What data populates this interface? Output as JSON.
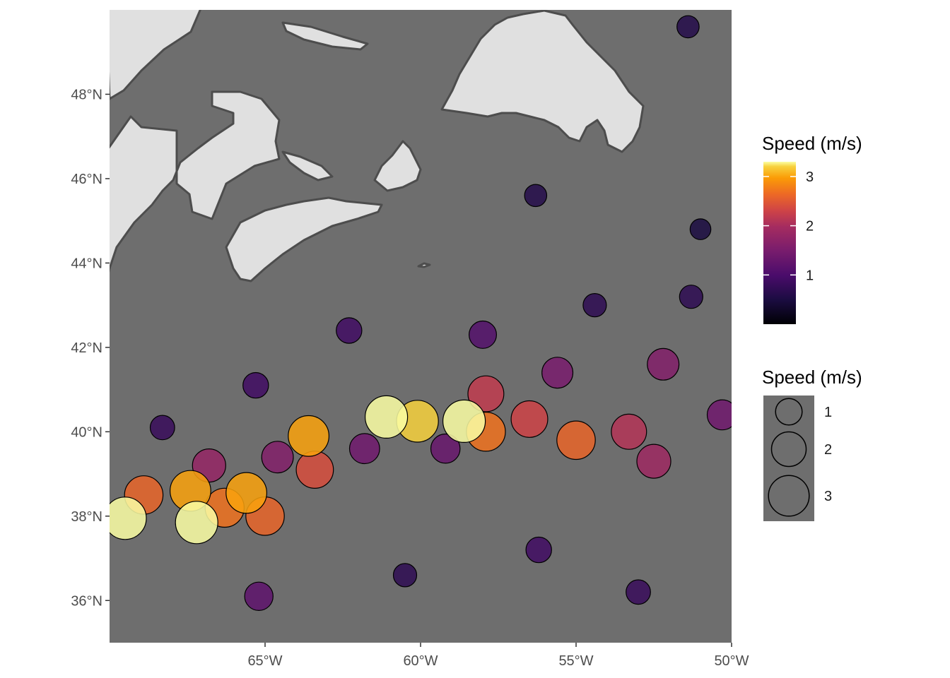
{
  "chart_data": {
    "type": "scatter",
    "title": "",
    "xlabel": "",
    "ylabel": "",
    "xlim": [
      -70,
      -50
    ],
    "ylim": [
      35,
      50
    ],
    "x_ticks": [
      {
        "value": -65,
        "label": "65°W"
      },
      {
        "value": -60,
        "label": "60°W"
      },
      {
        "value": -55,
        "label": "55°W"
      },
      {
        "value": -50,
        "label": "50°W"
      }
    ],
    "y_ticks": [
      {
        "value": 36,
        "label": "36°N"
      },
      {
        "value": 38,
        "label": "38°N"
      },
      {
        "value": 40,
        "label": "40°N"
      },
      {
        "value": 42,
        "label": "42°N"
      },
      {
        "value": 44,
        "label": "44°N"
      },
      {
        "value": 46,
        "label": "46°N"
      },
      {
        "value": 48,
        "label": "48°N"
      }
    ],
    "colors": {
      "ocean": "#6e6e6e",
      "land": "#e0e0e0",
      "coastline": "#4d4d4d",
      "palette": "inferno"
    },
    "legend": {
      "placement": "right",
      "color": {
        "title": "Speed (m/s)",
        "range": [
          0,
          3.3
        ],
        "ticks": [
          {
            "value": 1,
            "label": "1"
          },
          {
            "value": 2,
            "label": "2"
          },
          {
            "value": 3,
            "label": "3"
          }
        ]
      },
      "size": {
        "title": "Speed (m/s)",
        "entries": [
          {
            "value": 1,
            "label": "1"
          },
          {
            "value": 2,
            "label": "2"
          },
          {
            "value": 3,
            "label": "3"
          }
        ]
      }
    },
    "points": [
      {
        "lon": -69.5,
        "lat": 37.95,
        "speed": 3.3
      },
      {
        "lon": -68.9,
        "lat": 38.5,
        "speed": 2.6
      },
      {
        "lon": -67.4,
        "lat": 38.6,
        "speed": 3.0
      },
      {
        "lon": -67.2,
        "lat": 37.85,
        "speed": 3.3
      },
      {
        "lon": -66.3,
        "lat": 38.2,
        "speed": 2.7
      },
      {
        "lon": -65.6,
        "lat": 38.55,
        "speed": 3.0
      },
      {
        "lon": -65.0,
        "lat": 38.0,
        "speed": 2.6
      },
      {
        "lon": -63.6,
        "lat": 39.9,
        "speed": 3.0
      },
      {
        "lon": -63.4,
        "lat": 39.1,
        "speed": 2.4
      },
      {
        "lon": -61.1,
        "lat": 40.35,
        "speed": 3.3
      },
      {
        "lon": -60.1,
        "lat": 40.25,
        "speed": 3.2
      },
      {
        "lon": -58.6,
        "lat": 40.25,
        "speed": 3.3
      },
      {
        "lon": -57.9,
        "lat": 40.0,
        "speed": 2.7
      },
      {
        "lon": -57.9,
        "lat": 40.9,
        "speed": 2.2
      },
      {
        "lon": -56.5,
        "lat": 40.3,
        "speed": 2.3
      },
      {
        "lon": -55.0,
        "lat": 39.8,
        "speed": 2.6
      },
      {
        "lon": -53.3,
        "lat": 40.0,
        "speed": 2.1
      },
      {
        "lon": -52.5,
        "lat": 39.3,
        "speed": 1.9
      },
      {
        "lon": -61.8,
        "lat": 39.6,
        "speed": 1.4
      },
      {
        "lon": -64.6,
        "lat": 39.4,
        "speed": 1.6
      },
      {
        "lon": -66.8,
        "lat": 39.2,
        "speed": 1.8
      },
      {
        "lon": -59.2,
        "lat": 39.6,
        "speed": 1.3
      },
      {
        "lon": -55.6,
        "lat": 41.4,
        "speed": 1.5
      },
      {
        "lon": -52.2,
        "lat": 41.6,
        "speed": 1.6
      },
      {
        "lon": -50.3,
        "lat": 40.4,
        "speed": 1.4
      },
      {
        "lon": -58.0,
        "lat": 42.3,
        "speed": 1.1
      },
      {
        "lon": -62.3,
        "lat": 42.4,
        "speed": 0.9
      },
      {
        "lon": -65.3,
        "lat": 41.1,
        "speed": 0.9
      },
      {
        "lon": -68.3,
        "lat": 40.1,
        "speed": 0.8
      },
      {
        "lon": -54.4,
        "lat": 43.0,
        "speed": 0.7
      },
      {
        "lon": -51.3,
        "lat": 43.2,
        "speed": 0.7
      },
      {
        "lon": -56.3,
        "lat": 45.6,
        "speed": 0.6
      },
      {
        "lon": -51.0,
        "lat": 44.8,
        "speed": 0.5
      },
      {
        "lon": -51.4,
        "lat": 49.6,
        "speed": 0.6
      },
      {
        "lon": -60.5,
        "lat": 36.6,
        "speed": 0.7
      },
      {
        "lon": -56.2,
        "lat": 37.2,
        "speed": 0.9
      },
      {
        "lon": -53.0,
        "lat": 36.2,
        "speed": 0.8
      },
      {
        "lon": -65.2,
        "lat": 36.1,
        "speed": 1.2
      }
    ]
  }
}
